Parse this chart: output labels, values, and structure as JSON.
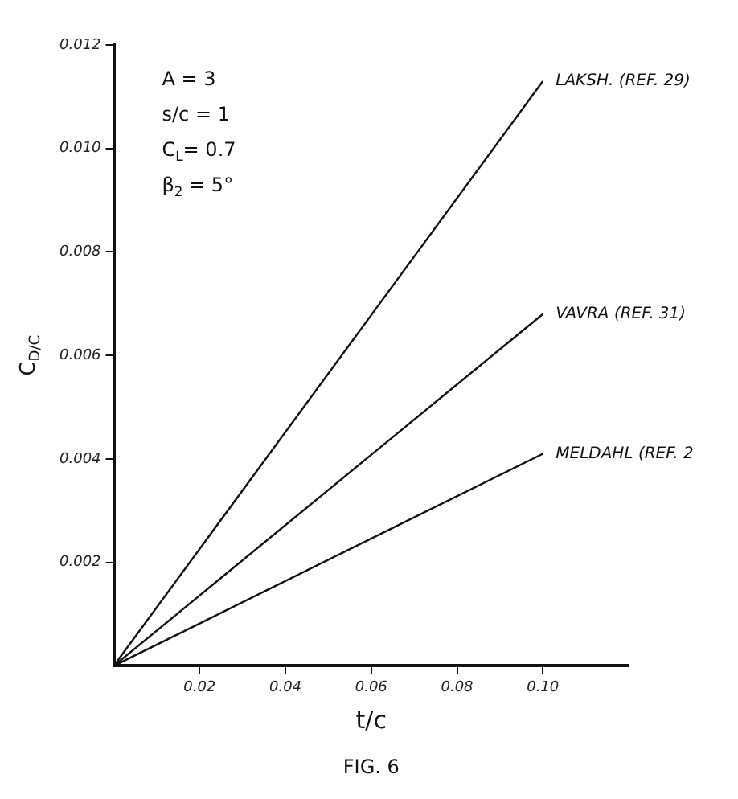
{
  "chart_data": {
    "type": "line",
    "xlabel": "t/c",
    "ylabel": "C$_{D/C}$",
    "x": [
      0,
      0.1
    ],
    "series": [
      {
        "name": "LAKSH. (REF. 29)",
        "color": "#111111",
        "values": [
          0,
          0.0113
        ]
      },
      {
        "name": "VAVRA (REF. 31)",
        "color": "#111111",
        "values": [
          0,
          0.0068
        ]
      },
      {
        "name": "MELDAHL (REF. 2",
        "color": "#111111",
        "values": [
          0,
          0.0041
        ]
      }
    ],
    "xlim": [
      0,
      0.12
    ],
    "ylim": [
      0,
      0.012
    ],
    "xticks": [
      0.02,
      0.04,
      0.06,
      0.08,
      {
        "value": 0.1,
        "label": "0.10"
      }
    ],
    "yticks": [
      0.002,
      0.004,
      0.006,
      0.008,
      {
        "value": 0.01,
        "label": "0.010"
      },
      0.012
    ],
    "annotations": [
      "A = 3",
      "s/c = 1",
      "C$_{L}$= 0.7",
      "β$_{2}$ = 5°",
      "FIG. 6"
    ],
    "grid": false,
    "legend": false,
    "marker": "none",
    "line_style": "solid"
  }
}
